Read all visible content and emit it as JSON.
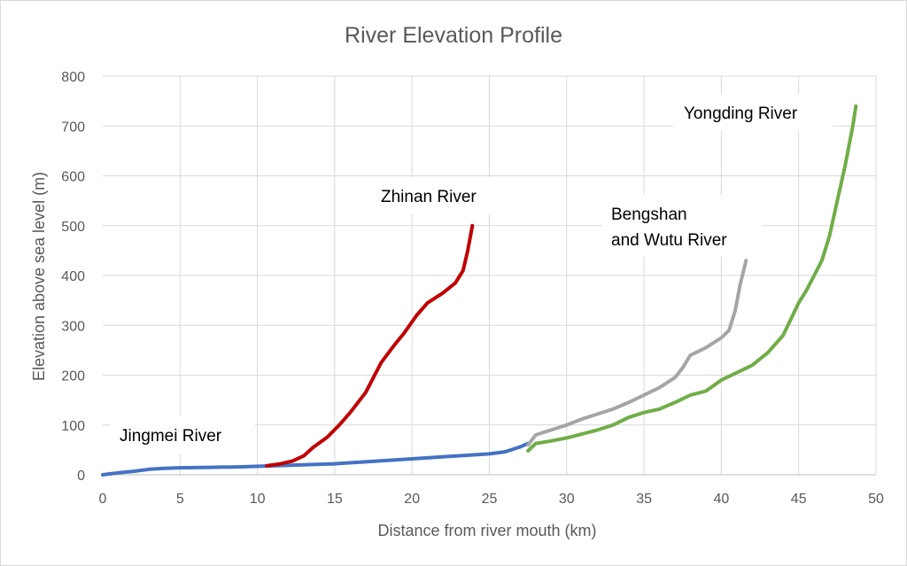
{
  "chart_data": {
    "type": "line",
    "title": "River Elevation Profile",
    "xlabel": "Distance from river mouth (km)",
    "ylabel": "Elevation above sea level (m)",
    "xlim": [
      0,
      50
    ],
    "ylim": [
      0,
      800
    ],
    "xticks": [
      0,
      5,
      10,
      15,
      20,
      25,
      30,
      35,
      40,
      45,
      50
    ],
    "yticks": [
      0,
      100,
      200,
      300,
      400,
      500,
      600,
      700,
      800
    ],
    "grid": true,
    "legend": "none",
    "series": [
      {
        "name": "Jingmei River",
        "color": "#4472c4",
        "points": [
          [
            0,
            0
          ],
          [
            1,
            4
          ],
          [
            2,
            7
          ],
          [
            3,
            11
          ],
          [
            4,
            13
          ],
          [
            5,
            14
          ],
          [
            7,
            15
          ],
          [
            9,
            16
          ],
          [
            11,
            18
          ],
          [
            13,
            20
          ],
          [
            15,
            22
          ],
          [
            17,
            26
          ],
          [
            19,
            30
          ],
          [
            21,
            34
          ],
          [
            23,
            38
          ],
          [
            25,
            42
          ],
          [
            26,
            46
          ],
          [
            27,
            56
          ],
          [
            27.5,
            63
          ]
        ]
      },
      {
        "name": "Zhinan River",
        "color": "#c00000",
        "points": [
          [
            10.6,
            18
          ],
          [
            11.5,
            22
          ],
          [
            12.3,
            28
          ],
          [
            13,
            38
          ],
          [
            13.6,
            55
          ],
          [
            14.5,
            75
          ],
          [
            15.3,
            100
          ],
          [
            16,
            125
          ],
          [
            17,
            165
          ],
          [
            18,
            225
          ],
          [
            18.8,
            258
          ],
          [
            19.5,
            285
          ],
          [
            20.3,
            320
          ],
          [
            21,
            345
          ],
          [
            22,
            365
          ],
          [
            22.8,
            385
          ],
          [
            23.3,
            410
          ],
          [
            23.6,
            450
          ],
          [
            23.9,
            500
          ]
        ]
      },
      {
        "name": "Bengshan and Wutu River",
        "color": "#a5a5a5",
        "points": [
          [
            27.5,
            60
          ],
          [
            28,
            80
          ],
          [
            29,
            90
          ],
          [
            30,
            100
          ],
          [
            31,
            112
          ],
          [
            32,
            122
          ],
          [
            33,
            132
          ],
          [
            34,
            145
          ],
          [
            35,
            160
          ],
          [
            36,
            175
          ],
          [
            37,
            195
          ],
          [
            37.5,
            215
          ],
          [
            38,
            240
          ],
          [
            39,
            255
          ],
          [
            40,
            275
          ],
          [
            40.5,
            290
          ],
          [
            40.9,
            330
          ],
          [
            41.2,
            380
          ],
          [
            41.6,
            430
          ]
        ]
      },
      {
        "name": "Yongding River",
        "color": "#70ad47",
        "points": [
          [
            27.5,
            48
          ],
          [
            28,
            63
          ],
          [
            29,
            68
          ],
          [
            30,
            74
          ],
          [
            31,
            82
          ],
          [
            32,
            90
          ],
          [
            33,
            100
          ],
          [
            34,
            115
          ],
          [
            35,
            125
          ],
          [
            36,
            132
          ],
          [
            37,
            145
          ],
          [
            38,
            160
          ],
          [
            39,
            168
          ],
          [
            40,
            190
          ],
          [
            41,
            205
          ],
          [
            42,
            220
          ],
          [
            43,
            245
          ],
          [
            44,
            280
          ],
          [
            45,
            345
          ],
          [
            45.5,
            370
          ],
          [
            46,
            400
          ],
          [
            46.5,
            430
          ],
          [
            47,
            480
          ],
          [
            47.5,
            550
          ],
          [
            48,
            620
          ],
          [
            48.5,
            700
          ],
          [
            48.7,
            740
          ]
        ]
      }
    ],
    "annotations": [
      {
        "text": "Jingmei River"
      },
      {
        "text": "Zhinan River"
      },
      {
        "text_lines": [
          "Bengshan",
          "and Wutu River"
        ]
      },
      {
        "text": "Yongding River"
      }
    ]
  }
}
